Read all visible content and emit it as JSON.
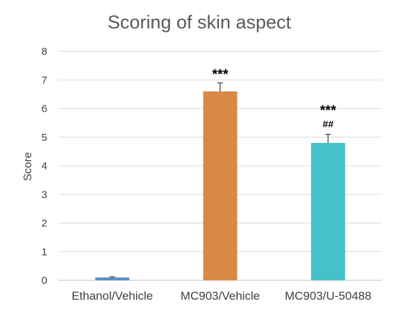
{
  "chart_data": {
    "type": "bar",
    "title": "Scoring of skin aspect",
    "xlabel": "",
    "ylabel": "Score",
    "ylim": [
      0,
      8
    ],
    "yticks": [
      0,
      1,
      2,
      3,
      4,
      5,
      6,
      7,
      8
    ],
    "grid": true,
    "categories": [
      "Ethanol/Vehicle",
      "MC903/Vehicle",
      "MC903/U-50488"
    ],
    "values": [
      0.1,
      6.6,
      4.8
    ],
    "errors": [
      0.02,
      0.3,
      0.3
    ],
    "colors": [
      "#5b8ec4",
      "#d68a45",
      "#45c2c7"
    ],
    "annotations": [
      [],
      [
        "***"
      ],
      [
        "***",
        "##"
      ]
    ]
  }
}
